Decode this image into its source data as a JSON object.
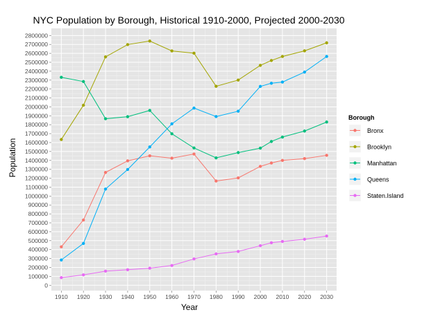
{
  "chart_data": {
    "type": "line",
    "title": "NYC Population by Borough, Historical 1910-2000, Projected 2000-2030",
    "xlabel": "Year",
    "ylabel": "Population",
    "x_ticks": [
      1910,
      1920,
      1930,
      1940,
      1950,
      1960,
      1970,
      1980,
      1990,
      2000,
      2010,
      2020,
      2030
    ],
    "y_ticks": [
      0,
      100000,
      200000,
      300000,
      400000,
      500000,
      600000,
      700000,
      800000,
      900000,
      1000000,
      1100000,
      1200000,
      1300000,
      1400000,
      1500000,
      1600000,
      1700000,
      1800000,
      1900000,
      2000000,
      2100000,
      2200000,
      2300000,
      2400000,
      2500000,
      2600000,
      2700000,
      2800000
    ],
    "xlim": [
      1905.5,
      2034.5
    ],
    "ylim": [
      -60000,
      2880000
    ],
    "grid": true,
    "legend_title": "Borough",
    "legend_position": "right",
    "series": [
      {
        "name": "Bronx",
        "color": "#F8766D",
        "points": [
          [
            1910,
            430980
          ],
          [
            1920,
            732016
          ],
          [
            1930,
            1265258
          ],
          [
            1940,
            1394711
          ],
          [
            1950,
            1451277
          ],
          [
            1960,
            1424815
          ],
          [
            1970,
            1471701
          ],
          [
            1980,
            1168972
          ],
          [
            1990,
            1203789
          ],
          [
            2000,
            1332650
          ],
          [
            2005,
            1371000
          ],
          [
            2010,
            1400000
          ],
          [
            2020,
            1420000
          ],
          [
            2030,
            1457000
          ]
        ]
      },
      {
        "name": "Brooklyn",
        "color": "#A3A500",
        "points": [
          [
            1910,
            1634351
          ],
          [
            1920,
            2018356
          ],
          [
            1930,
            2560401
          ],
          [
            1940,
            2698285
          ],
          [
            1950,
            2738175
          ],
          [
            1960,
            2627319
          ],
          [
            1970,
            2602012
          ],
          [
            1980,
            2230936
          ],
          [
            1990,
            2300664
          ],
          [
            2000,
            2465326
          ],
          [
            2005,
            2520000
          ],
          [
            2010,
            2565000
          ],
          [
            2020,
            2628000
          ],
          [
            2030,
            2718000
          ]
        ]
      },
      {
        "name": "Manhattan",
        "color": "#00BF7D",
        "points": [
          [
            1910,
            2331542
          ],
          [
            1920,
            2284103
          ],
          [
            1930,
            1867312
          ],
          [
            1940,
            1889924
          ],
          [
            1950,
            1960101
          ],
          [
            1960,
            1698281
          ],
          [
            1970,
            1539233
          ],
          [
            1980,
            1428285
          ],
          [
            1990,
            1487536
          ],
          [
            2000,
            1537195
          ],
          [
            2005,
            1612000
          ],
          [
            2010,
            1662000
          ],
          [
            2020,
            1729000
          ],
          [
            2030,
            1830000
          ]
        ]
      },
      {
        "name": "Queens",
        "color": "#00B0F6",
        "points": [
          [
            1910,
            284041
          ],
          [
            1920,
            469042
          ],
          [
            1930,
            1079129
          ],
          [
            1940,
            1297634
          ],
          [
            1950,
            1550849
          ],
          [
            1960,
            1809578
          ],
          [
            1970,
            1986473
          ],
          [
            1980,
            1891325
          ],
          [
            1990,
            1951598
          ],
          [
            2000,
            2229379
          ],
          [
            2005,
            2265000
          ],
          [
            2010,
            2278000
          ],
          [
            2020,
            2390000
          ],
          [
            2030,
            2565000
          ]
        ]
      },
      {
        "name": "Staten.Island",
        "color": "#E76BF3",
        "points": [
          [
            1910,
            85969
          ],
          [
            1920,
            116531
          ],
          [
            1930,
            158346
          ],
          [
            1940,
            174441
          ],
          [
            1950,
            191555
          ],
          [
            1960,
            221991
          ],
          [
            1970,
            295443
          ],
          [
            1980,
            352121
          ],
          [
            1990,
            378977
          ],
          [
            2000,
            443728
          ],
          [
            2005,
            477000
          ],
          [
            2010,
            491000
          ],
          [
            2020,
            516000
          ],
          [
            2030,
            552000
          ]
        ]
      }
    ]
  }
}
